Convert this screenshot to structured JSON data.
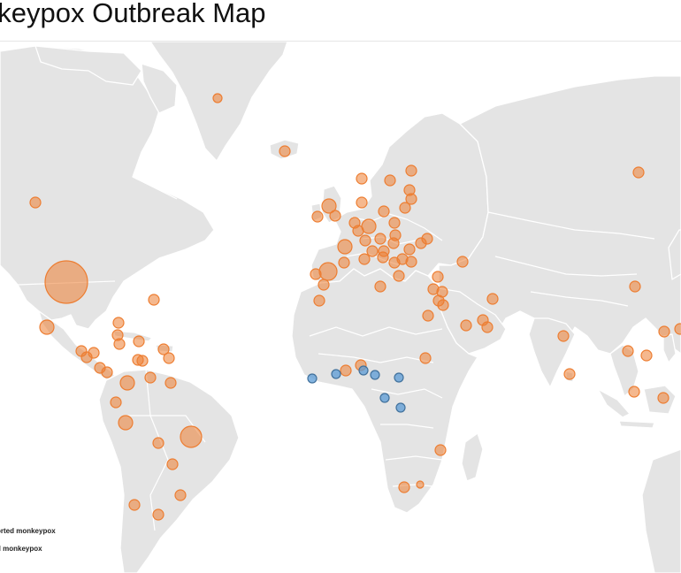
{
  "title": "nkeypox Outbreak Map",
  "legend": {
    "items": [
      {
        "label": "orted monkeypox",
        "color": "#ed7d31"
      },
      {
        "label": "d monkeypox",
        "color": "#5b9bd5"
      }
    ]
  },
  "colors": {
    "land": "#e4e4e4",
    "ocean": "#ffffff",
    "reported": "#ed7d31",
    "endemic": "#5b9bd5"
  },
  "markers": {
    "reported_count": 96,
    "endemic_count": 7
  }
}
